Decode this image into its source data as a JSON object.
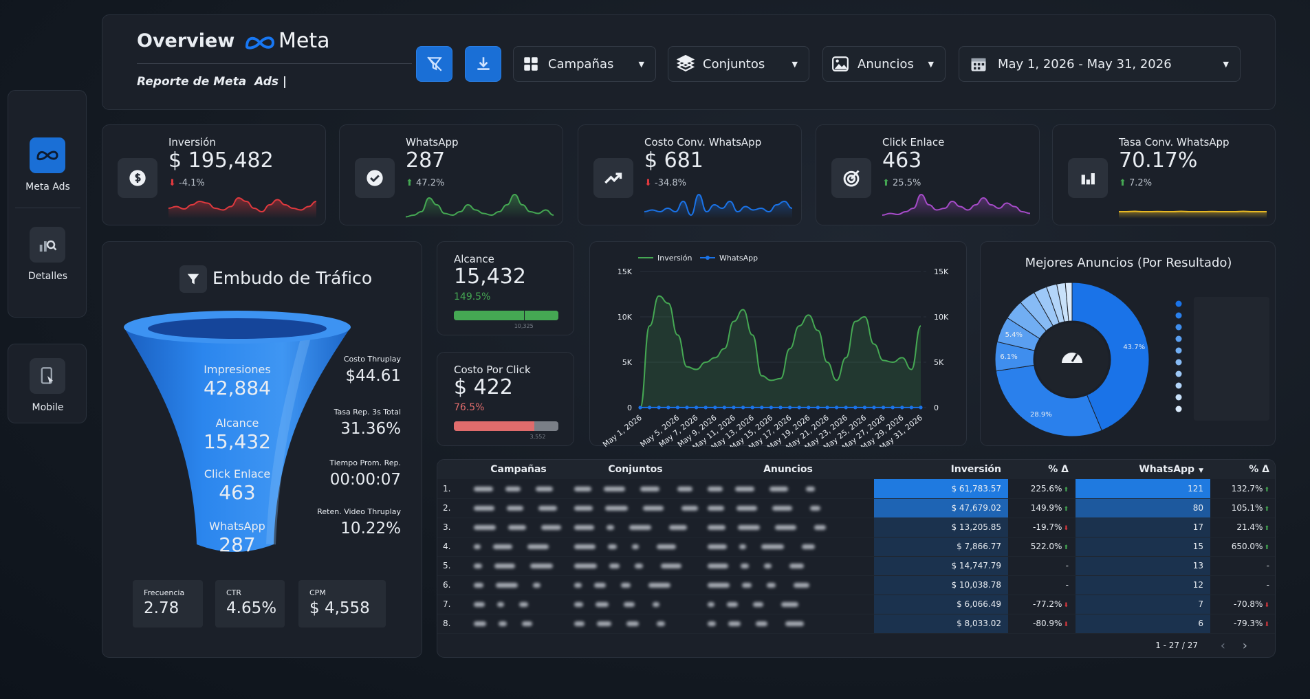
{
  "header": {
    "title": "Overview",
    "brand": "Meta",
    "subtitle": "Reporte de Meta  Ads |",
    "filters": [
      "Campañas",
      "Conjuntos",
      "Anuncios"
    ],
    "date_range": "May 1, 2026 - May 31, 2026"
  },
  "sidebar": [
    "Meta Ads",
    "Detalles",
    "Mobile"
  ],
  "kpis": [
    {
      "label": "Inversión",
      "value": "$ 195,482",
      "delta": "-4.1%",
      "color": "#e0393e",
      "spark_ylim": [
        0,
        10
      ],
      "spark": [
        3,
        3.5,
        2.8,
        4,
        5,
        4.5,
        3,
        2.5,
        3.5,
        6,
        5,
        3,
        2,
        4,
        5.5,
        4,
        3,
        2.5,
        3.5,
        5
      ]
    },
    {
      "label": "WhatsApp",
      "value": "287",
      "delta": "47.2%",
      "color": "#45a853",
      "spark_ylim": [
        0,
        10
      ],
      "spark": [
        0.5,
        1,
        2,
        6,
        4,
        1.5,
        1,
        2,
        4,
        2.5,
        1.5,
        1,
        2,
        4,
        7,
        4,
        2,
        1.5,
        2.5,
        1
      ]
    },
    {
      "label": "Costo Conv. WhatsApp",
      "value": "$ 681",
      "delta": "-34.8%",
      "color": "#1a73e8",
      "spark_ylim": [
        0,
        10
      ],
      "spark": [
        2,
        2.5,
        2,
        3,
        2,
        5,
        1,
        7,
        2,
        4,
        3,
        5,
        2,
        3.5,
        2.5,
        3,
        2,
        4,
        5,
        3
      ]
    },
    {
      "label": "Click Enlace",
      "value": "463",
      "delta": "25.5%",
      "color": "#a64bc9",
      "spark_ylim": [
        0,
        10
      ],
      "spark": [
        1,
        1.5,
        1.2,
        2,
        3,
        7,
        4,
        2.5,
        3,
        5,
        3.5,
        2.5,
        4,
        6,
        4,
        3,
        4.5,
        3.5,
        2,
        1.5
      ]
    },
    {
      "label": "Tasa Conv. WhatsApp",
      "value": "70.17%",
      "delta": "7.2%",
      "color": "#e8b923",
      "spark_ylim": [
        0,
        10
      ],
      "spark": [
        2,
        2,
        2.1,
        2,
        2,
        2.05,
        2,
        2,
        2.1,
        2,
        2,
        2,
        2.05,
        2,
        2,
        2,
        2.1,
        2,
        2,
        2
      ]
    }
  ],
  "funnel": {
    "title": "Embudo de Tráfico",
    "stages": [
      {
        "label": "Impresiones",
        "value": "42,884"
      },
      {
        "label": "Alcance",
        "value": "15,432"
      },
      {
        "label": "Click Enlace",
        "value": "463"
      },
      {
        "label": "WhatsApp",
        "value": "287"
      }
    ],
    "side": [
      {
        "label": "Costo Thruplay",
        "value": "$44.61"
      },
      {
        "label": "Tasa Rep. 3s Total",
        "value": "31.36%"
      },
      {
        "label": "Tiempo Prom. Rep.",
        "value": "00:00:07"
      },
      {
        "label": "Reten. Video Thruplay",
        "value": "10.22%"
      }
    ],
    "bottom": [
      {
        "label": "Frecuencia",
        "value": "2.78"
      },
      {
        "label": "CTR",
        "value": "4.65%"
      },
      {
        "label": "CPM",
        "value": "$ 4,558"
      }
    ]
  },
  "cards": [
    {
      "label": "Alcance",
      "value": "15,432",
      "delta": "149.5%",
      "target": "10,325",
      "color": "#45a853"
    },
    {
      "label": "Costo Por Click",
      "value": "$ 422",
      "delta": "76.5%",
      "target": "3,552",
      "color": "#e06c6c"
    }
  ],
  "chart_data": [
    {
      "type": "line",
      "legend": "top-left",
      "grid": true,
      "categories": [
        "May 1, 2026",
        null,
        null,
        null,
        "May 5, 2026",
        null,
        "May 7, 2026",
        null,
        "May 9, 2026",
        null,
        "May 11, 2026",
        null,
        "May 13, 2026",
        null,
        "May 15, 2026",
        null,
        "May 17, 2026",
        null,
        "May 19, 2026",
        null,
        "May 21, 2026",
        null,
        "May 23, 2026",
        null,
        "May 25, 2026",
        null,
        "May 27, 2026",
        null,
        "May 29, 2026",
        null,
        "May 31, 2026"
      ],
      "series": [
        {
          "name": "Inversión",
          "color": "#45a853",
          "values": [
            0,
            9000,
            12300,
            11500,
            8000,
            4500,
            4200,
            5000,
            5500,
            6500,
            9500,
            10800,
            8000,
            3500,
            3000,
            3200,
            6500,
            9000,
            10200,
            8500,
            5000,
            3000,
            5500,
            9500,
            10000,
            7000,
            5200,
            5000,
            5500,
            4200,
            9000
          ]
        },
        {
          "name": "WhatsApp",
          "color": "#1a73e8",
          "axis": "y2",
          "values": [
            0,
            12,
            10,
            8,
            9,
            11,
            7,
            10,
            9,
            8,
            12,
            10,
            9,
            8,
            7,
            9,
            11,
            10,
            9,
            8,
            10,
            9,
            7,
            8,
            10,
            11,
            9,
            8,
            10,
            9,
            8
          ]
        }
      ],
      "ylim": [
        0,
        15000
      ],
      "yticks": [
        0,
        {
          "value": 5000,
          "label": "5K"
        },
        {
          "value": 10000,
          "label": "10K"
        },
        {
          "value": 15000,
          "label": "15K"
        }
      ],
      "y2lim": [
        0,
        15000
      ],
      "y2ticks": [
        0,
        {
          "value": 5000,
          "label": "5K"
        },
        {
          "value": 10000,
          "label": "10K"
        },
        {
          "value": 15000,
          "label": "15K"
        }
      ]
    },
    {
      "type": "pie",
      "title": "Mejores Anuncios (Por Resultado)",
      "categories": [
        null,
        null,
        null,
        null,
        null,
        null,
        null,
        null,
        null,
        null
      ],
      "values": [
        43.7,
        28.9,
        6.1,
        5.4,
        4.2,
        3.5,
        2.8,
        2.2,
        1.8,
        1.4
      ],
      "value_labels": [
        "43.7%",
        "28.9%",
        "6.1%",
        "5.4%",
        null,
        null,
        null,
        null,
        null,
        null
      ],
      "colors": [
        "#1a73e8",
        "#2a80ec",
        "#3f8eee",
        "#5a9ff1",
        "#71aef3",
        "#87bbf5",
        "#9dc8f7",
        "#b3d5f9",
        "#c8e1fa",
        "#dbebfc"
      ]
    }
  ],
  "table": {
    "headers": [
      "Campañas",
      "Conjuntos",
      "Anuncios",
      "Inversión",
      "% Δ",
      "WhatsApp",
      "% Δ"
    ],
    "rows": [
      [
        "1.",
        "$ 61,783.57",
        "225.6%",
        "121",
        "132.7%"
      ],
      [
        "2.",
        "$ 47,679.02",
        "149.9%",
        "80",
        "105.1%"
      ],
      [
        "3.",
        "$ 13,205.85",
        "-19.7%",
        "17",
        "21.4%"
      ],
      [
        "4.",
        "$ 7,866.77",
        "522.0%",
        "15",
        "650.0%"
      ],
      [
        "5.",
        "$ 14,747.79",
        "-",
        "13",
        "-"
      ],
      [
        "6.",
        "$ 10,038.78",
        "-",
        "12",
        "-"
      ],
      [
        "7.",
        "$ 6,066.49",
        "-77.2%",
        "7",
        "-70.8%"
      ],
      [
        "8.",
        "$ 8,033.02",
        "-80.9%",
        "6",
        "-79.3%"
      ]
    ],
    "pagination": "1 - 27 / 27"
  }
}
